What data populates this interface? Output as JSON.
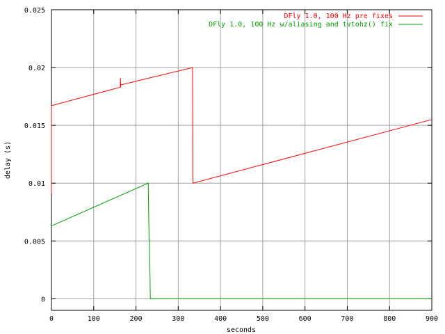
{
  "chart_data": {
    "type": "line",
    "xlabel": "seconds",
    "ylabel": "delay (s)",
    "xlim": [
      0,
      900
    ],
    "ylim": [
      -0.001,
      0.025
    ],
    "x_ticks": [
      0,
      100,
      200,
      300,
      400,
      500,
      600,
      700,
      800,
      900
    ],
    "x_tick_labels": [
      "0",
      "100",
      "200",
      "300",
      "400",
      "500",
      "600",
      "700",
      "800",
      "900"
    ],
    "y_ticks": [
      0,
      0.005,
      0.01,
      0.015,
      0.02,
      0.025
    ],
    "y_tick_labels": [
      "0",
      "0.005",
      "0.01",
      "0.015",
      "0.02",
      "0.025"
    ],
    "grid": true,
    "legend_position": "top-right",
    "series": [
      {
        "name": "DFly 1.0, 100 Hz pre fixes",
        "color": "#ff0000",
        "points": [
          [
            0,
            0.0091
          ],
          [
            0,
            0.0119
          ],
          [
            0,
            0.0167
          ],
          [
            163,
            0.0183
          ],
          [
            163,
            0.0191
          ],
          [
            164,
            0.0183
          ],
          [
            164,
            0.0185
          ],
          [
            334,
            0.02
          ],
          [
            335,
            0.01
          ],
          [
            900,
            0.0155
          ]
        ]
      },
      {
        "name": "DFly 1.0, 100 Hz w/aliasing and tvtohz() fix",
        "color": "#00a000",
        "points": [
          [
            0,
            0.0063
          ],
          [
            229,
            0.01
          ],
          [
            231,
            0.0051
          ],
          [
            232,
            0.0051
          ],
          [
            234,
            0.0
          ],
          [
            900,
            0.0
          ]
        ]
      }
    ]
  }
}
